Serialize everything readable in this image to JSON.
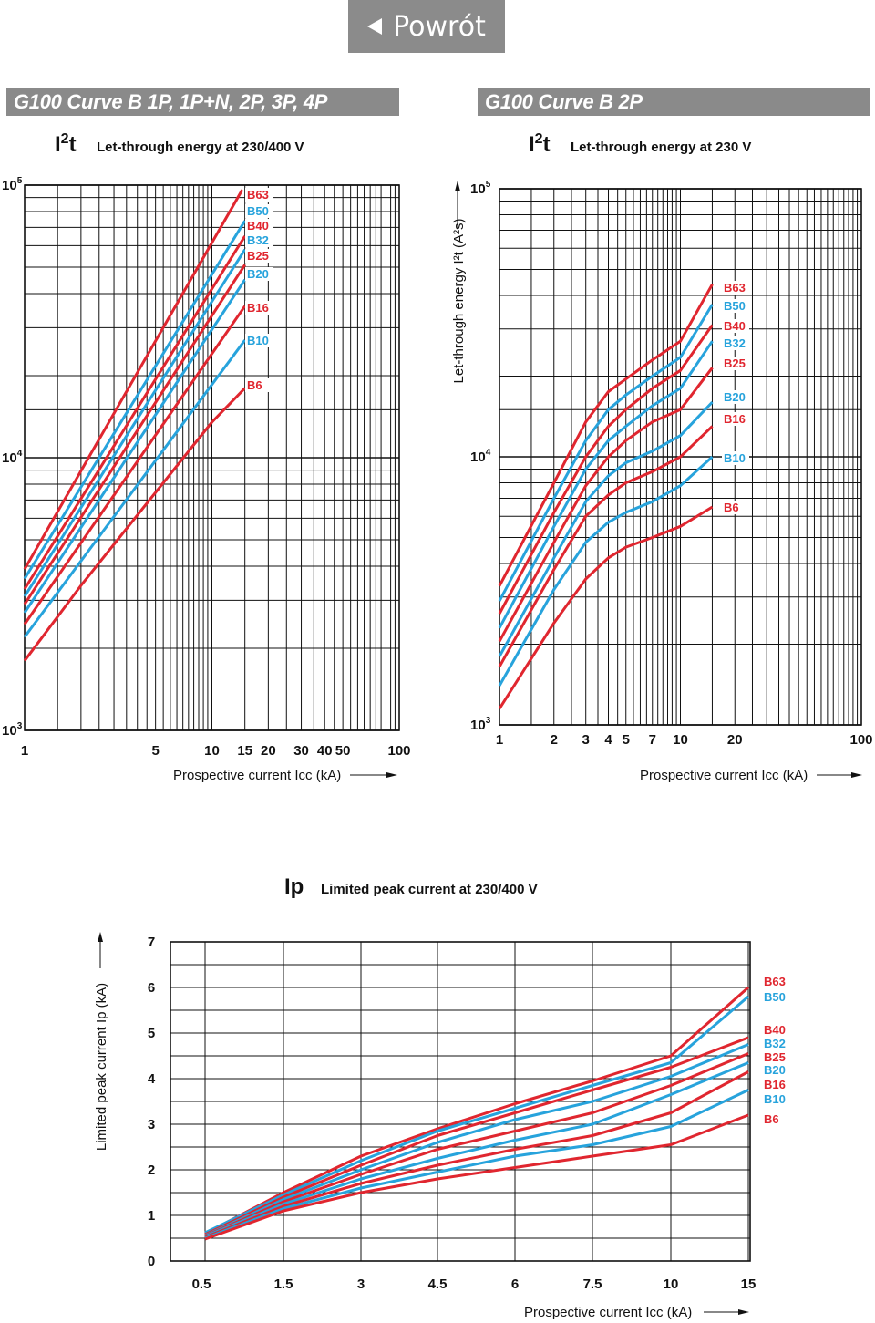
{
  "nav": {
    "back_label": "Powrót",
    "arrow_icon": "left-triangle-icon"
  },
  "banners": {
    "left": "G100 Curve B 1P, 1P+N, 2P, 3P, 4P",
    "right": "G100 Curve B 2P"
  },
  "colors": {
    "red": "#e0262f",
    "blue": "#27a3dc",
    "grid": "#111111",
    "banner": "#8a8a8a"
  },
  "chart_data": [
    {
      "id": "i2t_multi",
      "type": "line",
      "symbol": "I²t",
      "title": "Let-through energy at 230/400 V",
      "xlabel": "Prospective current Icc (kA)",
      "ylabel": "",
      "xscale": "log",
      "yscale": "log",
      "xlim": [
        1,
        100
      ],
      "ylim": [
        1000,
        100000
      ],
      "xticks": [
        1,
        5,
        10,
        15,
        20,
        30,
        40,
        50,
        100
      ],
      "xtick_labels": [
        "1",
        "5",
        "10",
        "15",
        "20",
        "30",
        "40",
        "50",
        "100"
      ],
      "ytick_labels": [
        "10⁵",
        "10⁴",
        "10³"
      ],
      "grid": true,
      "series": [
        {
          "name": "B63",
          "color": "red",
          "x": [
            1,
            14.5
          ],
          "y": [
            3900,
            96000
          ]
        },
        {
          "name": "B50",
          "color": "blue",
          "x": [
            1,
            15
          ],
          "y": [
            3600,
            74000
          ]
        },
        {
          "name": "B40",
          "color": "red",
          "x": [
            1,
            15
          ],
          "y": [
            3300,
            65000
          ]
        },
        {
          "name": "B32",
          "color": "blue",
          "x": [
            1,
            15
          ],
          "y": [
            3100,
            58000
          ]
        },
        {
          "name": "B25",
          "color": "red",
          "x": [
            1,
            15
          ],
          "y": [
            2900,
            51000
          ]
        },
        {
          "name": "B20",
          "color": "blue",
          "x": [
            1,
            15
          ],
          "y": [
            2700,
            45000
          ]
        },
        {
          "name": "B16",
          "color": "red",
          "x": [
            1,
            15
          ],
          "y": [
            2450,
            36000
          ]
        },
        {
          "name": "B10",
          "color": "blue",
          "x": [
            1,
            15
          ],
          "y": [
            2200,
            27000
          ]
        },
        {
          "name": "B6",
          "color": "red",
          "x": [
            1,
            2,
            10,
            15
          ],
          "y": [
            1800,
            3400,
            13500,
            18000
          ]
        }
      ]
    },
    {
      "id": "i2t_2p",
      "type": "line",
      "symbol": "I²t",
      "title": "Let-through energy at 230 V",
      "xlabel": "Prospective current Icc (kA)",
      "ylabel": "Let-through energy I²t (A²s)",
      "xscale": "log",
      "yscale": "log",
      "xlim": [
        1,
        100
      ],
      "ylim": [
        1000,
        100000
      ],
      "xticks": [
        1,
        2,
        3,
        4,
        5,
        7,
        10,
        20,
        100
      ],
      "xtick_labels": [
        "1",
        "2",
        "3",
        "4",
        "5",
        "7",
        "10",
        "20",
        "100"
      ],
      "ytick_labels": [
        "10⁵",
        "10⁴",
        "10³"
      ],
      "grid": true,
      "series": [
        {
          "name": "B63",
          "color": "red",
          "x": [
            1,
            2,
            3,
            4,
            5,
            7,
            10,
            15
          ],
          "y": [
            3300,
            8000,
            13500,
            17500,
            19500,
            23000,
            27000,
            44000
          ]
        },
        {
          "name": "B50",
          "color": "blue",
          "x": [
            1,
            2,
            3,
            4,
            5,
            7,
            10,
            15
          ],
          "y": [
            2900,
            7000,
            11500,
            15000,
            17000,
            20000,
            23500,
            37000
          ]
        },
        {
          "name": "B40",
          "color": "red",
          "x": [
            1,
            2,
            3,
            4,
            5,
            7,
            10,
            15
          ],
          "y": [
            2600,
            6200,
            10000,
            13000,
            15000,
            18000,
            21000,
            31000
          ]
        },
        {
          "name": "B32",
          "color": "blue",
          "x": [
            1,
            2,
            3,
            4,
            5,
            7,
            10,
            15
          ],
          "y": [
            2300,
            5500,
            9000,
            11500,
            13000,
            15500,
            18000,
            27000
          ]
        },
        {
          "name": "B25",
          "color": "red",
          "x": [
            1,
            2,
            3,
            4,
            5,
            7,
            10,
            15
          ],
          "y": [
            2050,
            4800,
            7800,
            10000,
            11500,
            13500,
            15000,
            21500
          ]
        },
        {
          "name": "B20",
          "color": "blue",
          "x": [
            1,
            2,
            3,
            4,
            5,
            7,
            10,
            15
          ],
          "y": [
            1800,
            4200,
            6800,
            8500,
            9500,
            10500,
            12000,
            16000
          ]
        },
        {
          "name": "B16",
          "color": "red",
          "x": [
            1,
            2,
            3,
            4,
            5,
            7,
            10,
            15
          ],
          "y": [
            1650,
            3800,
            6000,
            7200,
            8000,
            8800,
            10000,
            13000
          ]
        },
        {
          "name": "B10",
          "color": "blue",
          "x": [
            1,
            2,
            3,
            4,
            5,
            7,
            10,
            15
          ],
          "y": [
            1400,
            3200,
            4800,
            5700,
            6200,
            6800,
            7800,
            10000
          ]
        },
        {
          "name": "B6",
          "color": "red",
          "x": [
            1,
            2,
            3,
            4,
            5,
            7,
            10,
            15
          ],
          "y": [
            1150,
            2400,
            3500,
            4200,
            4600,
            5000,
            5500,
            6500
          ]
        }
      ]
    },
    {
      "id": "ip",
      "type": "line",
      "symbol": "Ip",
      "title": "Limited peak current at 230/400 V",
      "xlabel": "Prospective current Icc (kA)",
      "ylabel": "Limited peak current Ip (kA)",
      "xscale": "category",
      "categories": [
        "0.5",
        "1.5",
        "3",
        "4.5",
        "6",
        "7.5",
        "10",
        "15"
      ],
      "ylim": [
        0,
        7
      ],
      "yticks": [
        0,
        1,
        2,
        3,
        4,
        5,
        6,
        7
      ],
      "grid": true,
      "series": [
        {
          "name": "B63",
          "color": "red",
          "values": [
            0.6,
            1.5,
            2.3,
            2.9,
            3.45,
            3.95,
            4.5,
            6.0
          ]
        },
        {
          "name": "B50",
          "color": "blue",
          "values": [
            0.62,
            1.45,
            2.2,
            2.85,
            3.35,
            3.85,
            4.35,
            5.8
          ]
        },
        {
          "name": "B40",
          "color": "red",
          "values": [
            0.58,
            1.4,
            2.1,
            2.75,
            3.25,
            3.75,
            4.25,
            4.9
          ]
        },
        {
          "name": "B32",
          "color": "blue",
          "values": [
            0.56,
            1.35,
            2.0,
            2.6,
            3.1,
            3.5,
            4.05,
            4.75
          ]
        },
        {
          "name": "B25",
          "color": "red",
          "values": [
            0.55,
            1.3,
            1.9,
            2.45,
            2.85,
            3.25,
            3.85,
            4.55
          ]
        },
        {
          "name": "B20",
          "color": "blue",
          "values": [
            0.54,
            1.25,
            1.8,
            2.25,
            2.65,
            3.0,
            3.65,
            4.35
          ]
        },
        {
          "name": "B16",
          "color": "red",
          "values": [
            0.52,
            1.2,
            1.7,
            2.1,
            2.45,
            2.75,
            3.25,
            4.15
          ]
        },
        {
          "name": "B10",
          "color": "blue",
          "values": [
            0.5,
            1.15,
            1.6,
            1.95,
            2.3,
            2.55,
            2.95,
            3.75
          ]
        },
        {
          "name": "B6",
          "color": "red",
          "values": [
            0.48,
            1.1,
            1.5,
            1.8,
            2.05,
            2.3,
            2.55,
            3.2
          ]
        }
      ]
    }
  ]
}
